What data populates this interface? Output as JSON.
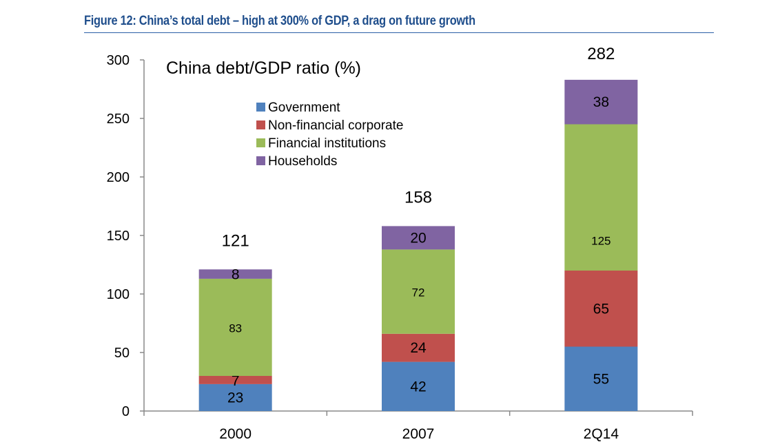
{
  "figure": {
    "title": "Figure 12: China’s total debt – high at 300% of GDP, a drag on future growth",
    "title_color": "#1f4e8c"
  },
  "chart_data": {
    "type": "bar",
    "stacked": true,
    "title": "China debt/GDP ratio (%)",
    "xlabel": "",
    "ylabel": "",
    "categories": [
      "2000",
      "2007",
      "2Q14"
    ],
    "series": [
      {
        "name": "Government",
        "color": "#4f81bd",
        "values": [
          23,
          42,
          55
        ]
      },
      {
        "name": "Non-financial corporate",
        "color": "#c0504d",
        "values": [
          7,
          24,
          65
        ]
      },
      {
        "name": "Financial institutions",
        "color": "#9bbb59",
        "values": [
          83,
          72,
          125
        ]
      },
      {
        "name": "Households",
        "color": "#8064a2",
        "values": [
          8,
          20,
          38
        ]
      }
    ],
    "totals": [
      121,
      158,
      282
    ],
    "ylim": [
      0,
      300
    ],
    "yticks": [
      0,
      50,
      100,
      150,
      200,
      250,
      300
    ],
    "grid": false,
    "legend_position": "top-center"
  }
}
